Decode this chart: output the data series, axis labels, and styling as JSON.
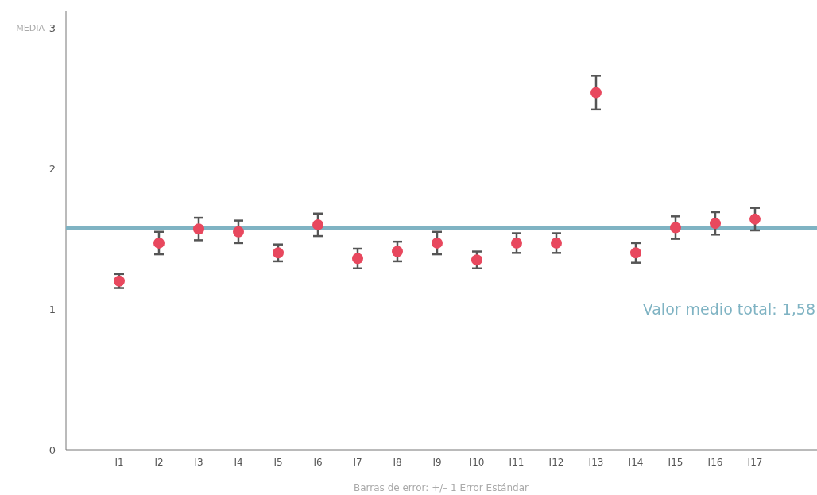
{
  "chart_data": {
    "type": "scatter",
    "ylabel": "MEDIA",
    "categories": [
      "I1",
      "I2",
      "I3",
      "I4",
      "I5",
      "I6",
      "I7",
      "I8",
      "I9",
      "I10",
      "I11",
      "I12",
      "I13",
      "I14",
      "I15",
      "I16",
      "I17"
    ],
    "series": [
      {
        "color": "#e8485e",
        "values": [
          1.2,
          1.47,
          1.57,
          1.55,
          1.4,
          1.6,
          1.36,
          1.41,
          1.47,
          1.35,
          1.47,
          1.47,
          2.54,
          1.4,
          1.58,
          1.61,
          1.64
        ],
        "errors": [
          0.05,
          0.08,
          0.08,
          0.08,
          0.06,
          0.08,
          0.07,
          0.07,
          0.08,
          0.06,
          0.07,
          0.07,
          0.12,
          0.07,
          0.08,
          0.08,
          0.08
        ]
      }
    ],
    "ylim": [
      0,
      3.12
    ],
    "yticks": [
      0,
      1,
      2,
      3
    ],
    "grid": false,
    "marker": "circle",
    "ref_lines": [
      {
        "axis": "y",
        "value": 1.58,
        "label": "Valor medio total: 1,58",
        "color": "#7fb3c3"
      }
    ],
    "annotations": [
      "Barras de error: +/– 1 Error Estándar"
    ]
  }
}
